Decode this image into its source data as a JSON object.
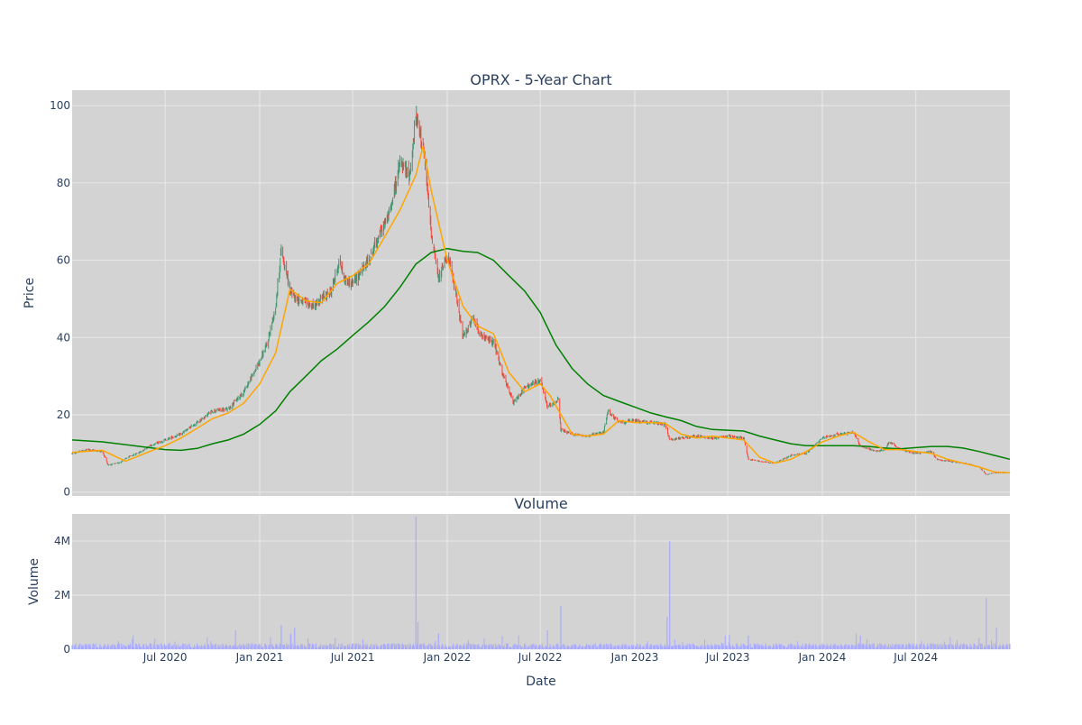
{
  "chart_data": [
    {
      "type": "candlestick",
      "title": "OPRX - 5-Year Chart",
      "ylabel": "Price",
      "ylim": [
        -1,
        104
      ],
      "yticks": [
        0,
        20,
        40,
        60,
        80,
        100
      ],
      "grid": true,
      "colors": {
        "up": "#3d9970",
        "down": "#ff4136",
        "ma_short": "orange",
        "ma_long": "green",
        "plot_bg": "#d3d3d3",
        "grid": "#e8e8e8"
      },
      "price_path": [
        [
          "2020-01-02",
          10.0
        ],
        [
          "2020-02-01",
          11.0
        ],
        [
          "2020-03-01",
          10.5
        ],
        [
          "2020-03-12",
          7.0
        ],
        [
          "2020-04-01",
          7.5
        ],
        [
          "2020-04-20",
          9.0
        ],
        [
          "2020-05-15",
          10.5
        ],
        [
          "2020-06-01",
          12.0
        ],
        [
          "2020-07-01",
          13.5
        ],
        [
          "2020-08-01",
          15.0
        ],
        [
          "2020-09-01",
          18.0
        ],
        [
          "2020-10-01",
          21.0
        ],
        [
          "2020-11-01",
          21.5
        ],
        [
          "2020-12-01",
          26.0
        ],
        [
          "2020-12-25",
          32.0
        ],
        [
          "2021-01-15",
          38.0
        ],
        [
          "2021-02-01",
          48.0
        ],
        [
          "2021-02-12",
          63.0
        ],
        [
          "2021-03-01",
          52.0
        ],
        [
          "2021-03-15",
          50.0
        ],
        [
          "2021-04-01",
          49.0
        ],
        [
          "2021-04-15",
          48.0
        ],
        [
          "2021-05-01",
          50.0
        ],
        [
          "2021-05-20",
          52.0
        ],
        [
          "2021-06-05",
          60.0
        ],
        [
          "2021-06-15",
          55.0
        ],
        [
          "2021-07-01",
          54.0
        ],
        [
          "2021-08-01",
          60.0
        ],
        [
          "2021-08-20",
          66.0
        ],
        [
          "2021-09-10",
          72.0
        ],
        [
          "2021-10-01",
          85.0
        ],
        [
          "2021-10-20",
          82.0
        ],
        [
          "2021-11-01",
          97.0
        ],
        [
          "2021-11-15",
          90.0
        ],
        [
          "2021-12-01",
          67.0
        ],
        [
          "2021-12-15",
          55.0
        ],
        [
          "2022-01-01",
          62.0
        ],
        [
          "2022-01-20",
          50.0
        ],
        [
          "2022-02-01",
          40.0
        ],
        [
          "2022-02-20",
          45.0
        ],
        [
          "2022-03-10",
          40.0
        ],
        [
          "2022-04-01",
          39.0
        ],
        [
          "2022-04-20",
          30.0
        ],
        [
          "2022-05-10",
          23.0
        ],
        [
          "2022-06-01",
          27.0
        ],
        [
          "2022-07-01",
          29.0
        ],
        [
          "2022-07-15",
          22.0
        ],
        [
          "2022-08-05",
          24.0
        ],
        [
          "2022-08-10",
          16.0
        ],
        [
          "2022-09-01",
          15.0
        ],
        [
          "2022-10-01",
          14.5
        ],
        [
          "2022-11-01",
          15.5
        ],
        [
          "2022-11-10",
          21.0
        ],
        [
          "2022-12-01",
          18.0
        ],
        [
          "2023-01-01",
          18.5
        ],
        [
          "2023-02-01",
          18.0
        ],
        [
          "2023-03-01",
          17.5
        ],
        [
          "2023-03-10",
          13.5
        ],
        [
          "2023-04-01",
          14.0
        ],
        [
          "2023-05-01",
          14.5
        ],
        [
          "2023-06-01",
          14.0
        ],
        [
          "2023-07-01",
          14.5
        ],
        [
          "2023-08-01",
          14.0
        ],
        [
          "2023-08-10",
          8.5
        ],
        [
          "2023-09-01",
          8.0
        ],
        [
          "2023-10-01",
          7.5
        ],
        [
          "2023-11-01",
          9.5
        ],
        [
          "2023-12-01",
          10.0
        ],
        [
          "2024-01-01",
          14.0
        ],
        [
          "2024-02-01",
          15.0
        ],
        [
          "2024-03-01",
          15.5
        ],
        [
          "2024-03-15",
          12.0
        ],
        [
          "2024-04-15",
          10.5
        ],
        [
          "2024-05-01",
          11.0
        ],
        [
          "2024-05-10",
          13.0
        ],
        [
          "2024-06-01",
          11.0
        ],
        [
          "2024-07-01",
          10.0
        ],
        [
          "2024-08-01",
          10.5
        ],
        [
          "2024-08-10",
          8.5
        ],
        [
          "2024-09-01",
          8.0
        ],
        [
          "2024-10-01",
          7.5
        ],
        [
          "2024-11-01",
          6.5
        ],
        [
          "2024-11-15",
          4.5
        ],
        [
          "2024-12-01",
          5.0
        ],
        [
          "2024-12-31",
          5.0
        ]
      ],
      "ma_short": [
        [
          "2020-01-02",
          10.3
        ],
        [
          "2020-03-01",
          10.8
        ],
        [
          "2020-04-15",
          8.0
        ],
        [
          "2020-06-01",
          10.5
        ],
        [
          "2020-07-01",
          12.0
        ],
        [
          "2020-08-01",
          14.0
        ],
        [
          "2020-09-01",
          16.5
        ],
        [
          "2020-10-01",
          19.0
        ],
        [
          "2020-11-01",
          20.5
        ],
        [
          "2020-12-01",
          23.0
        ],
        [
          "2021-01-01",
          28.0
        ],
        [
          "2021-02-01",
          36.0
        ],
        [
          "2021-03-01",
          52.5
        ],
        [
          "2021-04-01",
          49.5
        ],
        [
          "2021-05-01",
          49.0
        ],
        [
          "2021-06-01",
          54.0
        ],
        [
          "2021-07-01",
          56.0
        ],
        [
          "2021-08-01",
          59.0
        ],
        [
          "2021-09-01",
          66.0
        ],
        [
          "2021-10-01",
          73.0
        ],
        [
          "2021-11-01",
          82.0
        ],
        [
          "2021-11-15",
          89.5
        ],
        [
          "2021-12-01",
          78.0
        ],
        [
          "2022-01-01",
          60.0
        ],
        [
          "2022-02-01",
          48.0
        ],
        [
          "2022-03-01",
          43.0
        ],
        [
          "2022-04-01",
          41.0
        ],
        [
          "2022-05-01",
          31.0
        ],
        [
          "2022-06-01",
          26.0
        ],
        [
          "2022-07-01",
          28.0
        ],
        [
          "2022-07-20",
          25.0
        ],
        [
          "2022-09-01",
          15.0
        ],
        [
          "2022-10-01",
          14.5
        ],
        [
          "2022-11-01",
          15.0
        ],
        [
          "2022-12-01",
          18.5
        ],
        [
          "2023-01-01",
          18.0
        ],
        [
          "2023-02-01",
          18.0
        ],
        [
          "2023-03-01",
          17.8
        ],
        [
          "2023-04-01",
          15.0
        ],
        [
          "2023-05-01",
          14.0
        ],
        [
          "2023-06-01",
          14.5
        ],
        [
          "2023-07-01",
          14.0
        ],
        [
          "2023-08-01",
          13.5
        ],
        [
          "2023-09-01",
          9.0
        ],
        [
          "2023-10-01",
          7.5
        ],
        [
          "2023-11-01",
          8.5
        ],
        [
          "2023-12-01",
          10.5
        ],
        [
          "2024-01-01",
          13.0
        ],
        [
          "2024-02-01",
          14.5
        ],
        [
          "2024-03-01",
          15.5
        ],
        [
          "2024-04-01",
          13.0
        ],
        [
          "2024-05-01",
          11.0
        ],
        [
          "2024-06-01",
          11.0
        ],
        [
          "2024-07-01",
          10.5
        ],
        [
          "2024-08-01",
          10.0
        ],
        [
          "2024-09-01",
          8.5
        ],
        [
          "2024-10-01",
          7.5
        ],
        [
          "2024-11-01",
          6.5
        ],
        [
          "2024-12-01",
          5.2
        ],
        [
          "2024-12-31",
          5.0
        ]
      ],
      "ma_long": [
        [
          "2020-01-02",
          13.5
        ],
        [
          "2020-03-01",
          13.0
        ],
        [
          "2020-05-01",
          12.0
        ],
        [
          "2020-07-01",
          11.0
        ],
        [
          "2020-08-01",
          10.8
        ],
        [
          "2020-09-01",
          11.3
        ],
        [
          "2020-10-01",
          12.5
        ],
        [
          "2020-11-01",
          13.5
        ],
        [
          "2020-12-01",
          15.0
        ],
        [
          "2021-01-01",
          17.5
        ],
        [
          "2021-02-01",
          21.0
        ],
        [
          "2021-03-01",
          26.0
        ],
        [
          "2021-04-01",
          30.0
        ],
        [
          "2021-05-01",
          34.0
        ],
        [
          "2021-06-01",
          37.0
        ],
        [
          "2021-07-01",
          40.5
        ],
        [
          "2021-08-01",
          44.0
        ],
        [
          "2021-09-01",
          48.0
        ],
        [
          "2021-10-01",
          53.0
        ],
        [
          "2021-11-01",
          59.0
        ],
        [
          "2021-12-01",
          62.0
        ],
        [
          "2022-01-01",
          63.0
        ],
        [
          "2022-02-01",
          62.3
        ],
        [
          "2022-03-01",
          62.0
        ],
        [
          "2022-04-01",
          60.0
        ],
        [
          "2022-05-01",
          56.0
        ],
        [
          "2022-06-01",
          52.0
        ],
        [
          "2022-07-01",
          46.5
        ],
        [
          "2022-08-01",
          38.0
        ],
        [
          "2022-09-01",
          32.0
        ],
        [
          "2022-10-01",
          28.0
        ],
        [
          "2022-11-01",
          25.0
        ],
        [
          "2022-12-01",
          23.5
        ],
        [
          "2023-01-01",
          22.0
        ],
        [
          "2023-02-01",
          20.5
        ],
        [
          "2023-03-01",
          19.5
        ],
        [
          "2023-04-01",
          18.5
        ],
        [
          "2023-05-01",
          17.0
        ],
        [
          "2023-06-01",
          16.2
        ],
        [
          "2023-07-01",
          16.0
        ],
        [
          "2023-08-01",
          15.8
        ],
        [
          "2023-09-01",
          14.5
        ],
        [
          "2023-10-01",
          13.5
        ],
        [
          "2023-11-01",
          12.5
        ],
        [
          "2023-12-01",
          12.0
        ],
        [
          "2024-01-01",
          12.0
        ],
        [
          "2024-02-01",
          12.0
        ],
        [
          "2024-03-01",
          12.0
        ],
        [
          "2024-04-01",
          11.8
        ],
        [
          "2024-05-01",
          11.4
        ],
        [
          "2024-06-01",
          11.2
        ],
        [
          "2024-07-01",
          11.5
        ],
        [
          "2024-08-01",
          11.8
        ],
        [
          "2024-09-01",
          11.8
        ],
        [
          "2024-10-01",
          11.4
        ],
        [
          "2024-11-01",
          10.5
        ],
        [
          "2024-12-01",
          9.5
        ],
        [
          "2024-12-31",
          8.5
        ]
      ]
    },
    {
      "type": "bar",
      "title": "Volume",
      "xlabel": "Date",
      "ylabel": "Volume",
      "ylim": [
        0,
        5000000
      ],
      "yticks": [
        0,
        2000000,
        4000000
      ],
      "ytick_labels": [
        "0",
        "2M",
        "4M"
      ],
      "xlim": [
        "2020-01-02",
        "2024-12-31"
      ],
      "xticks": [
        "2020-07-01",
        "2021-01-01",
        "2021-07-01",
        "2022-01-01",
        "2022-07-01",
        "2023-01-01",
        "2023-07-01",
        "2024-01-01",
        "2024-07-01"
      ],
      "xtick_labels": [
        "Jul 2020",
        "Jan 2021",
        "Jul 2021",
        "Jan 2022",
        "Jul 2022",
        "Jan 2023",
        "Jul 2023",
        "Jan 2024",
        "Jul 2024"
      ],
      "colors": {
        "bar": "#aaaaff"
      },
      "spikes": [
        [
          "2020-11-15",
          700000
        ],
        [
          "2021-02-12",
          900000
        ],
        [
          "2021-03-10",
          800000
        ],
        [
          "2021-11-01",
          4900000
        ],
        [
          "2021-11-05",
          1000000
        ],
        [
          "2021-12-15",
          600000
        ],
        [
          "2022-08-10",
          1600000
        ],
        [
          "2022-07-15",
          700000
        ],
        [
          "2023-03-10",
          4000000
        ],
        [
          "2023-03-05",
          1200000
        ],
        [
          "2023-08-10",
          500000
        ],
        [
          "2024-03-15",
          500000
        ],
        [
          "2024-11-15",
          1900000
        ],
        [
          "2024-12-05",
          800000
        ]
      ]
    }
  ]
}
